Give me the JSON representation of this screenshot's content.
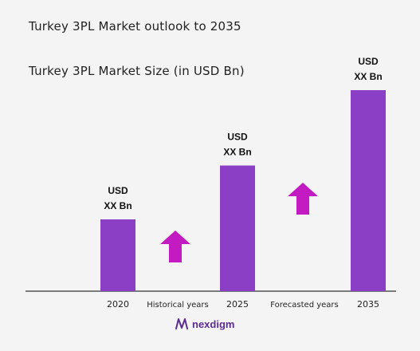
{
  "title": "Turkey 3PL Market outlook to 2035",
  "chart_data": {
    "type": "bar",
    "subtitle": "Turkey 3PL Market Size (in USD Bn)",
    "categories": [
      "2020",
      "2025",
      "2035"
    ],
    "values": [
      1.0,
      1.75,
      2.8
    ],
    "value_labels": [
      [
        "USD",
        "XX Bn"
      ],
      [
        "USD",
        "XX Bn"
      ],
      [
        "USD",
        "XX Bn"
      ]
    ],
    "period_labels": [
      "Historical years",
      "Forecasted years"
    ],
    "bar_color": "#8b3fc4",
    "arrow_color": "#c21bc2",
    "grid": false
  },
  "brand": {
    "name": "nexdigm",
    "color": "#5a2d91"
  }
}
